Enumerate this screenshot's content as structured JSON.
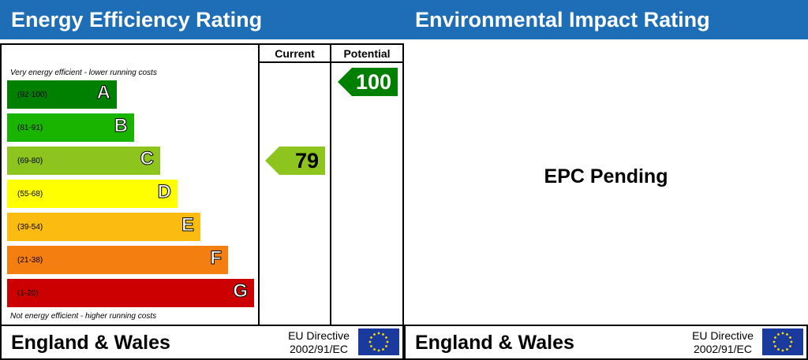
{
  "left": {
    "title": "Energy Efficiency Rating",
    "col_current": "Current",
    "col_potential": "Potential",
    "top_caption": "Very energy efficient - lower running costs",
    "bottom_caption": "Not energy efficient - higher running costs",
    "footer_country": "England & Wales",
    "footer_directive_line1": "EU Directive",
    "footer_directive_line2": "2002/91/EC"
  },
  "right": {
    "title": "Environmental Impact Rating",
    "pending_text": "EPC Pending",
    "footer_country": "England & Wales",
    "footer_directive_line1": "EU Directive",
    "footer_directive_line2": "2002/91/EC"
  },
  "chart_data": {
    "type": "bar",
    "categories": [
      "A",
      "B",
      "C",
      "D",
      "E",
      "F",
      "G"
    ],
    "ranges": [
      "(92-100)",
      "(81-91)",
      "(69-80)",
      "(55-68)",
      "(39-54)",
      "(21-38)",
      "(1-20)"
    ],
    "colors": [
      "#008000",
      "#19b400",
      "#8dc41d",
      "#ffff00",
      "#fbbb10",
      "#f57e11",
      "#cc0000"
    ],
    "current": {
      "value": "79",
      "band": "C",
      "color": "#8dc41d"
    },
    "potential": {
      "value": "100",
      "band": "A",
      "color": "#008000"
    }
  }
}
